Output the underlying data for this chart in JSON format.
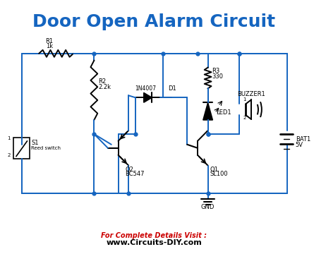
{
  "title": "Door Open Alarm Circuit",
  "title_color": "#1565C0",
  "title_fontsize": 18,
  "wire_color": "#1565C0",
  "component_color": "#000000",
  "bg_color": "#ffffff",
  "footer_text1": "For Complete Details Visit :",
  "footer_text2": "www.Circuits-DIY.com",
  "footer_color1": "#cc0000",
  "footer_color2": "#000000",
  "footer_fontsize": 7
}
